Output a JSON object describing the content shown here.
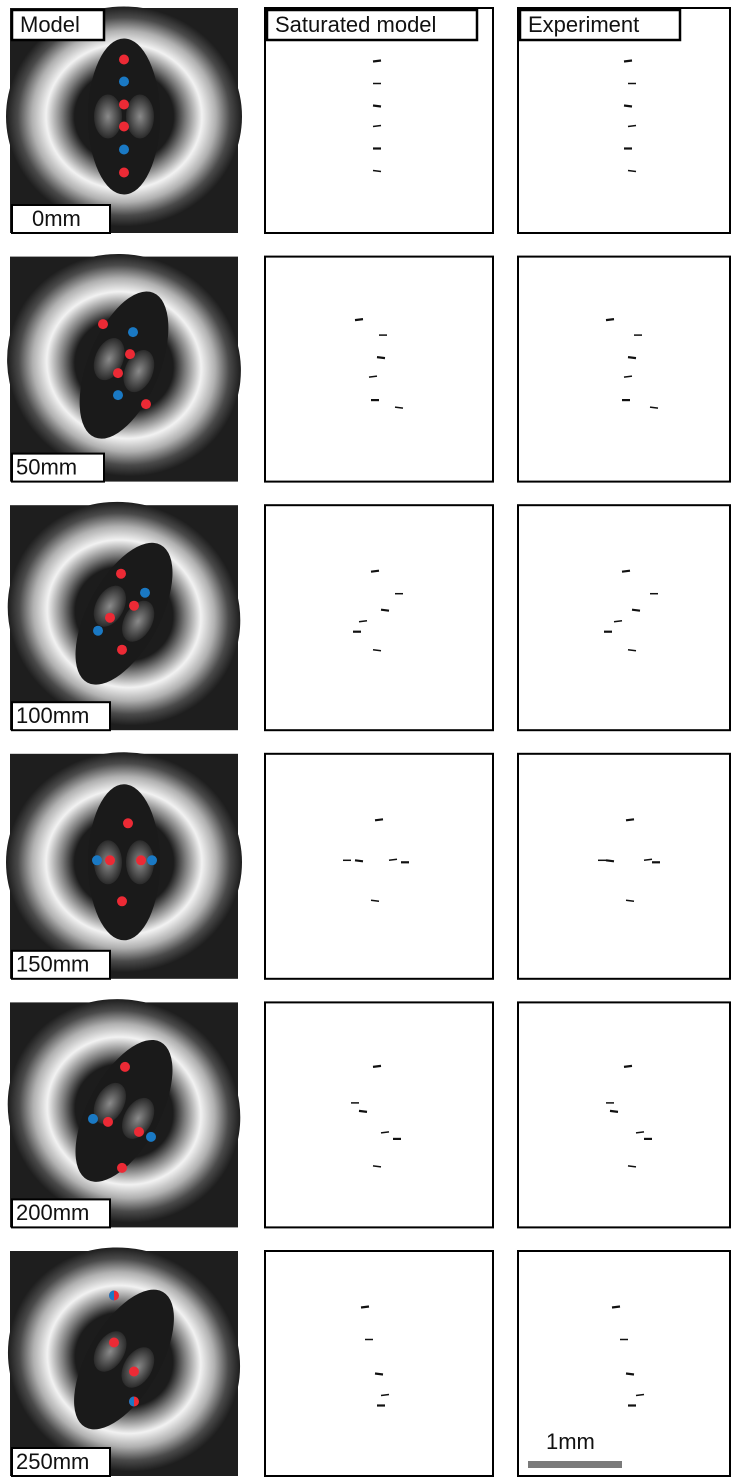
{
  "headers": [
    "Model",
    "Saturated model",
    "Experiment"
  ],
  "rows": [
    "0mm",
    "50mm",
    "100mm",
    "150mm",
    "200mm",
    "250mm"
  ],
  "scale_bar": "1mm"
}
